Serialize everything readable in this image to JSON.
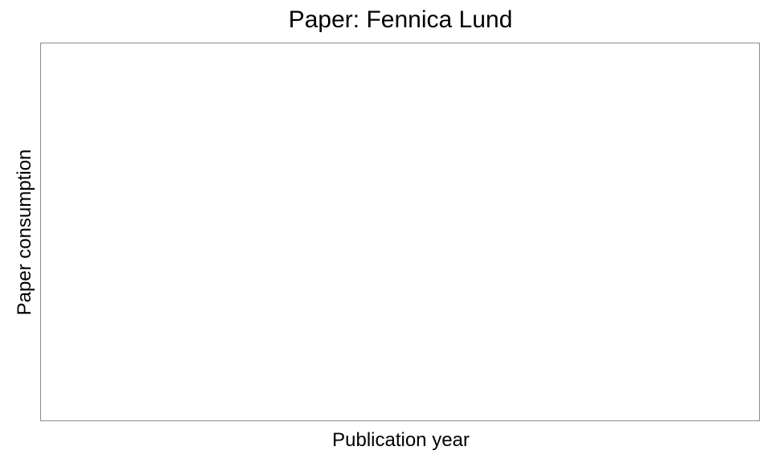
{
  "chart_data": {
    "type": "line",
    "title": "Paper: Fennica Lund",
    "xlabel": "Publication year",
    "ylabel": "Paper consumption",
    "series": [],
    "grid": false,
    "legend": "none"
  }
}
